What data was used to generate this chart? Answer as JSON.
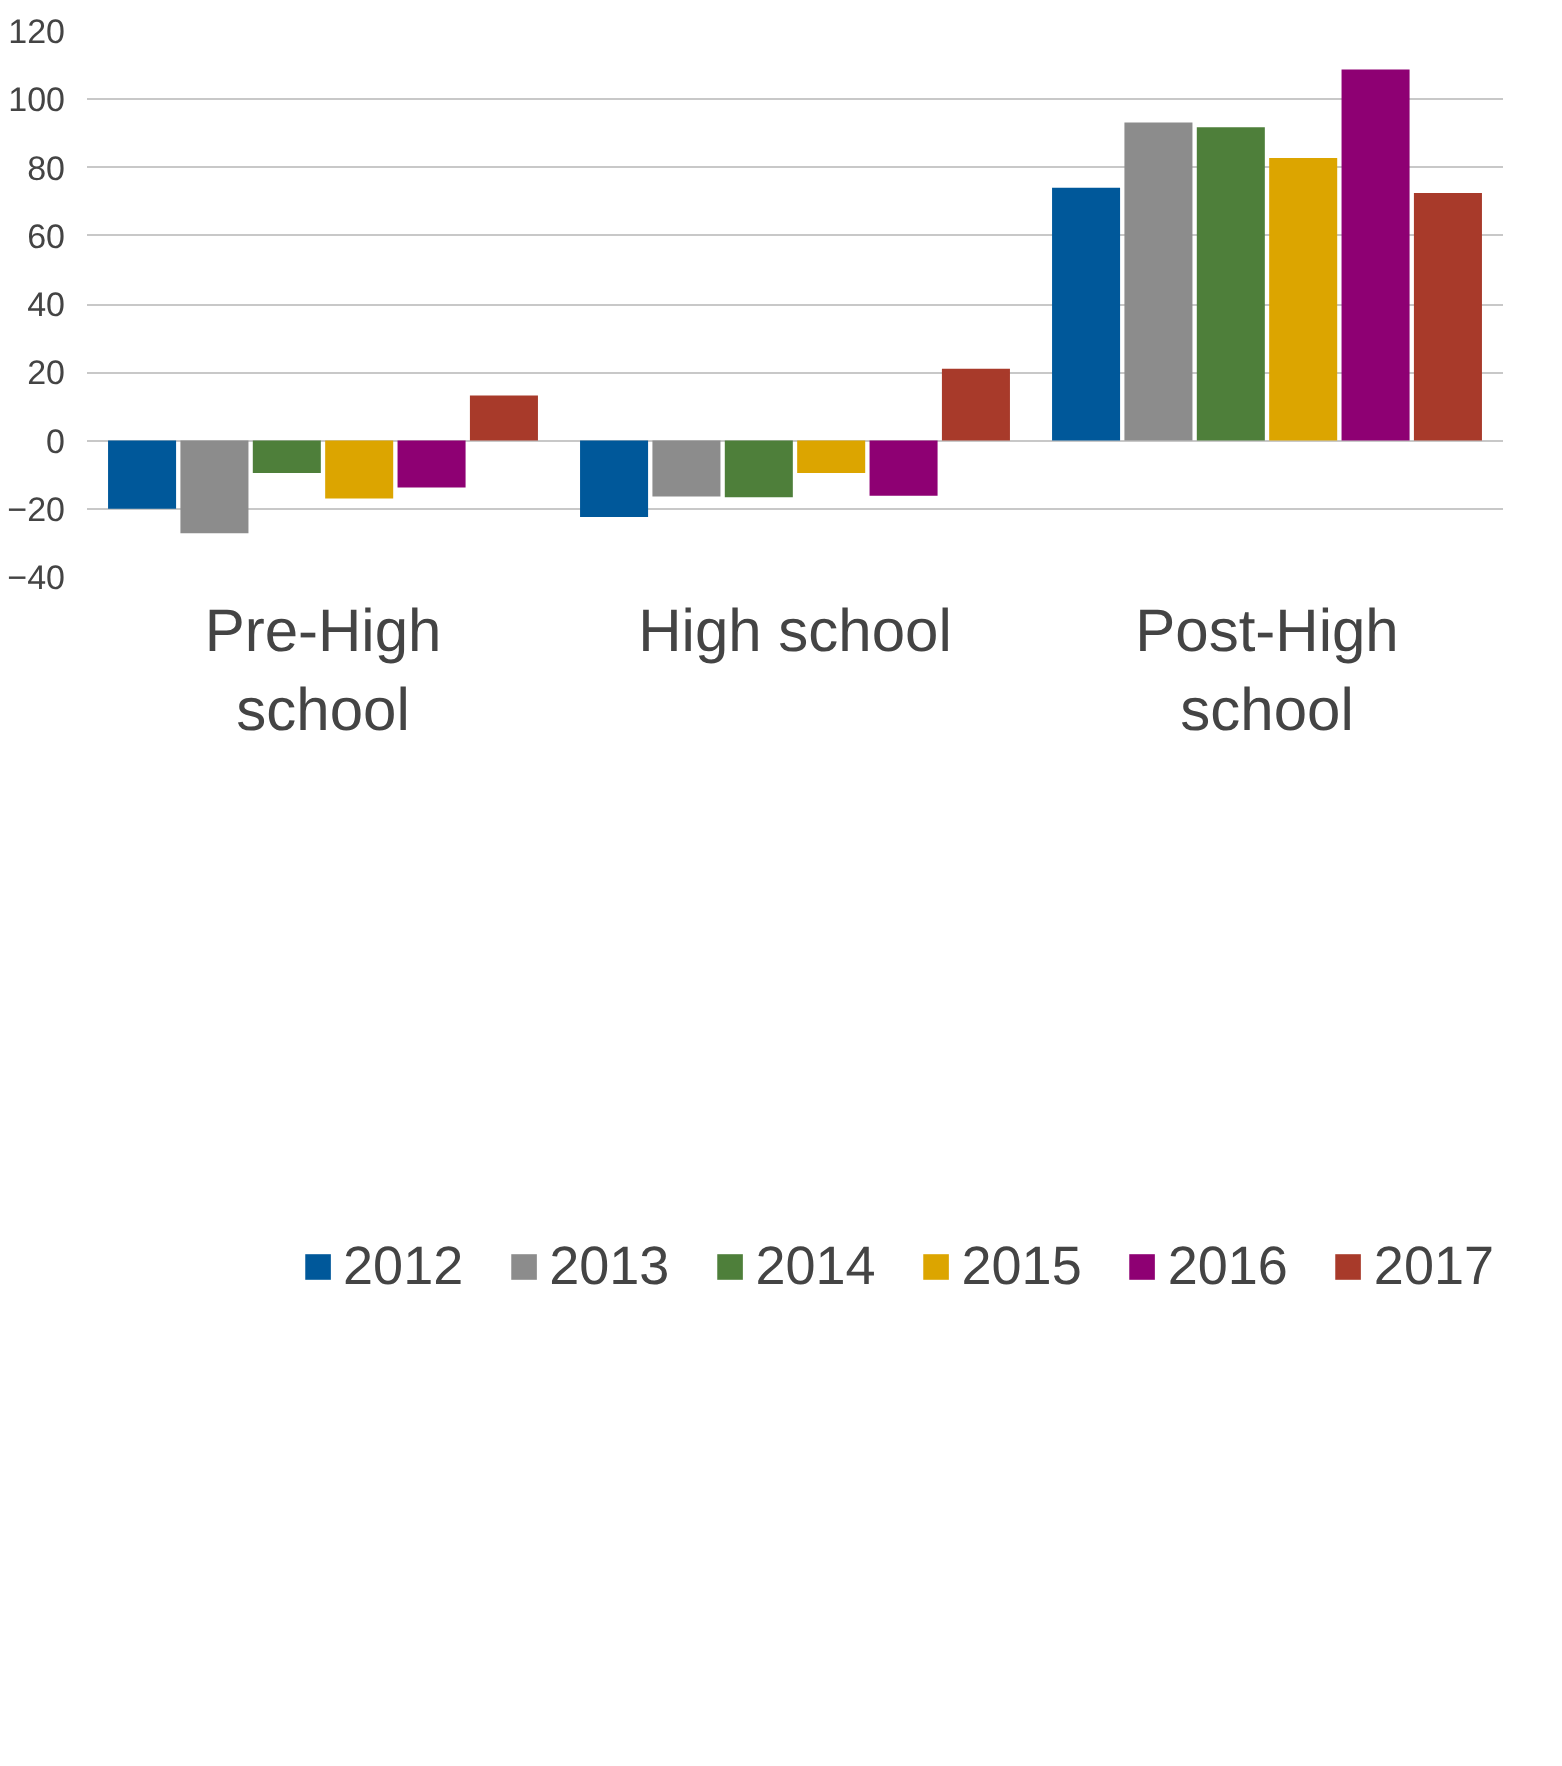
{
  "chart_data": {
    "type": "bar",
    "categories": [
      "Pre-High school",
      "High school",
      "Post-High school"
    ],
    "series": [
      {
        "name": "2012",
        "color": "#00589a",
        "values": [
          -20,
          -22.4,
          74.1
        ]
      },
      {
        "name": "2013",
        "color": "#8c8c8c",
        "values": [
          -27.2,
          -16.4,
          93.2
        ]
      },
      {
        "name": "2014",
        "color": "#4e7f3a",
        "values": [
          -9.5,
          -16.6,
          91.8
        ]
      },
      {
        "name": "2015",
        "color": "#dca500",
        "values": [
          -17,
          -9.5,
          82.8
        ]
      },
      {
        "name": "2016",
        "color": "#8e0073",
        "values": [
          -13.8,
          -16.2,
          108.7
        ]
      },
      {
        "name": "2017",
        "color": "#a83a2a",
        "values": [
          13.2,
          21,
          72.5
        ]
      }
    ],
    "ylim": [
      -40,
      120
    ],
    "yticks": [
      -40,
      -20,
      0,
      20,
      40,
      60,
      80,
      100,
      120
    ],
    "grid": "y",
    "legend": "bottom"
  }
}
